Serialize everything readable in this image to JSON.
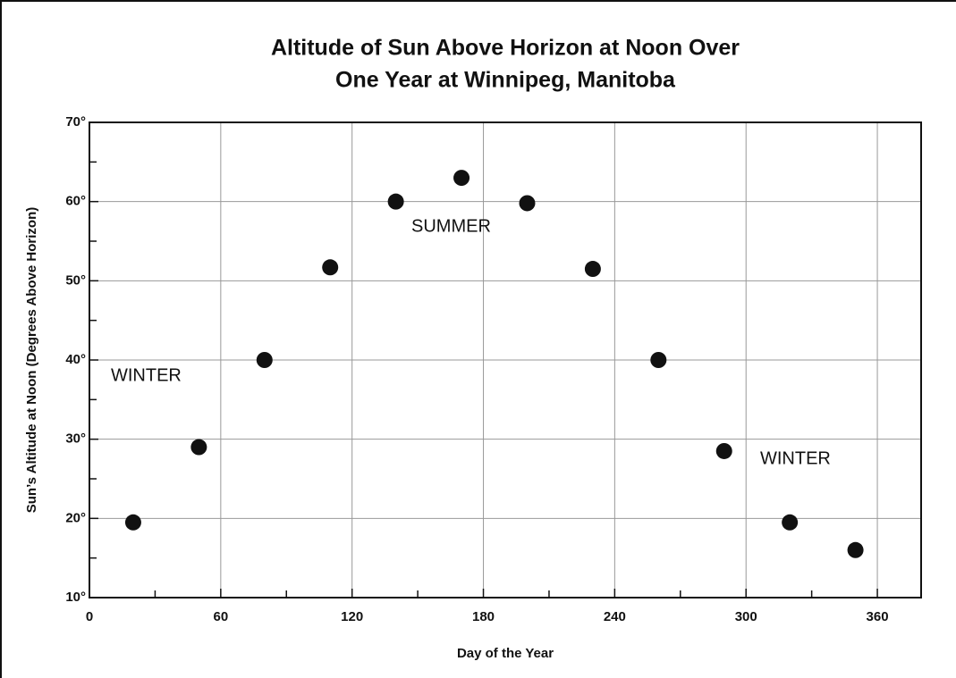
{
  "chart_data": {
    "type": "scatter",
    "title": [
      "Altitude of Sun Above Horizon at Noon Over",
      "One Year at Winnipeg, Manitoba"
    ],
    "x_label": "Day of the Year",
    "y_label": "Sun’s Altitude at Noon (Degrees Above Horizon)",
    "annotations": [
      "WINTER",
      "SUMMER",
      "WINTER"
    ],
    "x": [
      20,
      50,
      80,
      110,
      140,
      170,
      200,
      230,
      260,
      290,
      320,
      350
    ],
    "values": [
      19.5,
      29,
      40,
      51.7,
      60,
      63,
      59.8,
      51.5,
      40,
      28.5,
      19.5,
      16
    ],
    "color": "#111111",
    "xlim": [
      0,
      380
    ],
    "xticks": [
      0,
      60,
      120,
      180,
      240,
      300,
      360
    ],
    "xminorticks": [
      30,
      90,
      150,
      210,
      270,
      330
    ],
    "ylim": [
      10,
      70
    ],
    "yticks": [
      {
        "value": 10,
        "label": "10°"
      },
      {
        "value": 20,
        "label": "20°"
      },
      {
        "value": 30,
        "label": "30°"
      },
      {
        "value": 40,
        "label": "40°"
      },
      {
        "value": 50,
        "label": "50°"
      },
      {
        "value": 60,
        "label": "60°"
      },
      {
        "value": 70,
        "label": "70°"
      }
    ],
    "yminorticks": [
      15,
      25,
      35,
      45,
      55,
      65
    ],
    "grid": true
  }
}
